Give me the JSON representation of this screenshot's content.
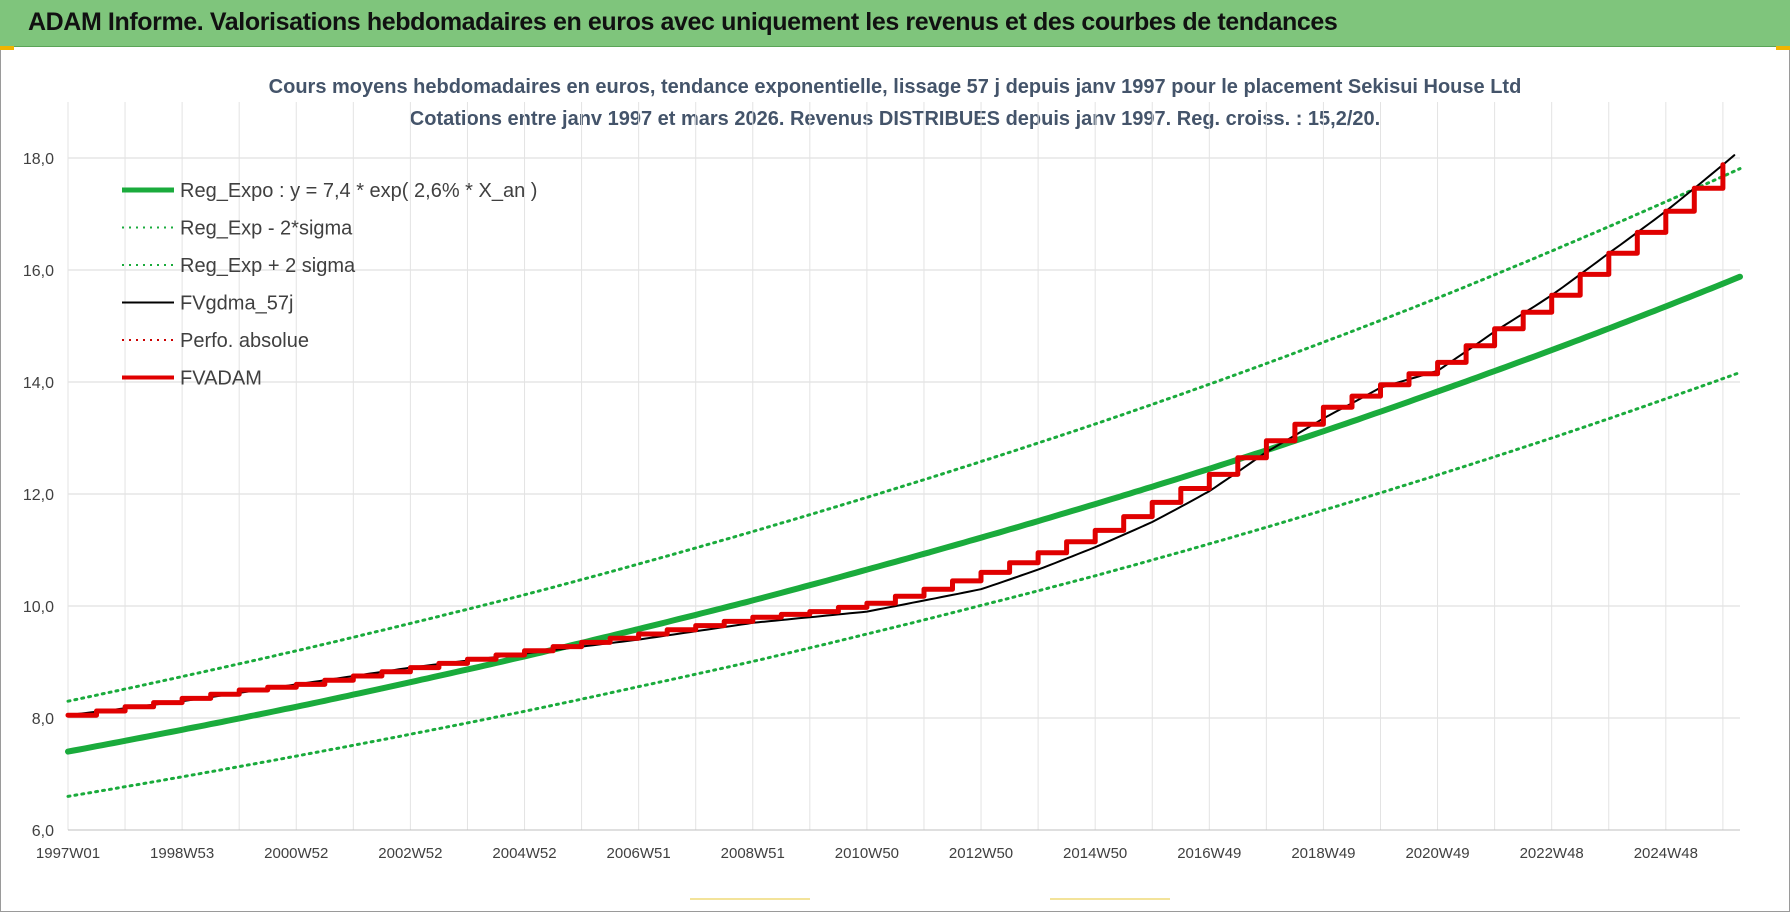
{
  "header": {
    "title": "ADAM Informe. Valorisations hebdomadaires en euros avec uniquement les revenus et des courbes de tendances"
  },
  "chart_data": {
    "type": "line",
    "title": "Cours moyens hebdomadaires en euros, tendance exponentielle, lissage 57 j depuis janv 1997 pour le placement Sekisui House Ltd",
    "subtitle": "Cotations entre janv 1997 et mars 2026. Revenus DISTRIBUES depuis janv 1997. Reg. croiss. : 15,2/20.",
    "xlabel": "",
    "ylabel": "",
    "x_tick_labels": [
      "1997W01",
      "1998W53",
      "2000W52",
      "2002W52",
      "2004W52",
      "2006W51",
      "2008W51",
      "2010W50",
      "2012W50",
      "2014W50",
      "2016W49",
      "2018W49",
      "2020W49",
      "2022W48",
      "2024W48"
    ],
    "y_ticks": [
      6.0,
      8.0,
      10.0,
      12.0,
      14.0,
      16.0,
      18.0
    ],
    "y_tick_labels": [
      "6,0",
      "8,0",
      "10,0",
      "12,0",
      "14,0",
      "16,0",
      "18,0"
    ],
    "ylim": [
      6.0,
      19.0
    ],
    "xlim": [
      1997.0,
      2026.3
    ],
    "grid": true,
    "legend_position": "top-left",
    "series": [
      {
        "name": "Reg_Expo : y = 7,4 * exp( 2,6% *  X_an )",
        "color": "#1aab3c",
        "style": "solid-thick",
        "x": [
          1997.0,
          1999.0,
          2001.0,
          2003.0,
          2005.0,
          2007.0,
          2009.0,
          2011.0,
          2013.0,
          2015.0,
          2017.0,
          2019.0,
          2021.0,
          2023.0,
          2025.0,
          2026.3
        ],
        "values": [
          7.4,
          7.79,
          8.2,
          8.64,
          9.1,
          9.59,
          10.1,
          10.65,
          11.22,
          11.82,
          12.45,
          13.12,
          13.83,
          14.57,
          15.35,
          15.88
        ]
      },
      {
        "name": "Reg_Exp - 2*sigma",
        "color": "#1aab3c",
        "style": "dotted",
        "x": [
          1997.0,
          1999.0,
          2001.0,
          2003.0,
          2005.0,
          2007.0,
          2009.0,
          2011.0,
          2013.0,
          2015.0,
          2017.0,
          2019.0,
          2021.0,
          2023.0,
          2025.0,
          2026.3
        ],
        "values": [
          6.6,
          6.95,
          7.32,
          7.71,
          8.12,
          8.56,
          9.01,
          9.5,
          10.01,
          10.54,
          11.11,
          11.71,
          12.34,
          13.0,
          13.7,
          14.17
        ]
      },
      {
        "name": "Reg_Exp + 2 sigma",
        "color": "#1aab3c",
        "style": "dotted",
        "x": [
          1997.0,
          1999.0,
          2001.0,
          2003.0,
          2005.0,
          2007.0,
          2009.0,
          2011.0,
          2013.0,
          2015.0,
          2017.0,
          2019.0,
          2021.0,
          2023.0,
          2025.0,
          2026.3
        ],
        "values": [
          8.3,
          8.74,
          9.2,
          9.69,
          10.2,
          10.75,
          11.33,
          11.94,
          12.58,
          13.25,
          13.96,
          14.71,
          15.5,
          16.34,
          17.22,
          17.81
        ]
      },
      {
        "name": "FVgdma_57j",
        "color": "#000000",
        "style": "solid-thin",
        "x": [
          1997.0,
          1999.0,
          2001.0,
          2003.0,
          2005.0,
          2007.0,
          2009.0,
          2011.0,
          2013.0,
          2014.0,
          2015.0,
          2016.0,
          2017.0,
          2018.0,
          2019.0,
          2020.0,
          2021.0,
          2022.0,
          2023.0,
          2024.0,
          2025.0,
          2026.2
        ],
        "values": [
          8.05,
          8.3,
          8.6,
          8.9,
          9.15,
          9.4,
          9.7,
          9.9,
          10.3,
          10.65,
          11.05,
          11.5,
          12.05,
          12.75,
          13.35,
          13.9,
          14.2,
          14.9,
          15.55,
          16.3,
          17.05,
          18.05
        ]
      },
      {
        "name": "Perfo. absolue",
        "color": "#cc0000",
        "style": "dotted",
        "x": [],
        "values": []
      },
      {
        "name": "FVADAM",
        "color": "#e00000",
        "style": "step-thick",
        "x": [
          1997.0,
          1998.0,
          1999.0,
          2000.0,
          2001.0,
          2002.0,
          2003.0,
          2004.0,
          2005.0,
          2006.0,
          2007.0,
          2008.0,
          2009.0,
          2010.0,
          2011.0,
          2012.0,
          2013.0,
          2014.0,
          2015.0,
          2016.0,
          2017.0,
          2018.0,
          2019.0,
          2020.0,
          2021.0,
          2022.0,
          2023.0,
          2024.0,
          2025.0,
          2026.2
        ],
        "values": [
          8.05,
          8.2,
          8.35,
          8.5,
          8.6,
          8.75,
          8.9,
          9.05,
          9.2,
          9.35,
          9.5,
          9.65,
          9.8,
          9.9,
          10.05,
          10.3,
          10.6,
          10.95,
          11.35,
          11.85,
          12.35,
          12.95,
          13.55,
          13.95,
          14.35,
          14.95,
          15.55,
          16.3,
          17.05,
          18.05
        ]
      }
    ]
  }
}
